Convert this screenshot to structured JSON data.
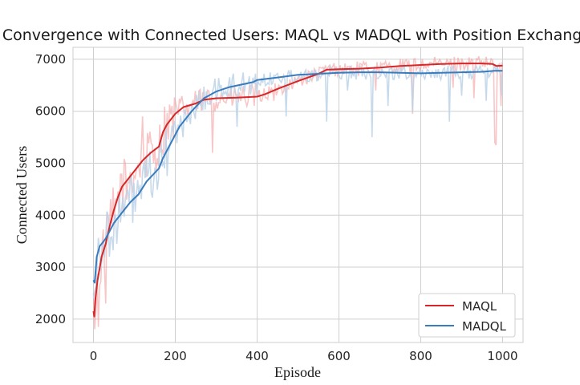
{
  "chart_data": {
    "type": "line",
    "title": "Convergence with Connected Users: MAQL vs MADQL with Position Exchange",
    "xlabel": "Episode",
    "ylabel": "Connected Users",
    "xlim": [
      -50,
      1050
    ],
    "ylim": [
      1550,
      7230
    ],
    "xticks": [
      0,
      200,
      400,
      600,
      800,
      1000
    ],
    "yticks": [
      2000,
      3000,
      4000,
      5000,
      6000,
      7000
    ],
    "grid": true,
    "legend_position": "lower-right",
    "series": [
      {
        "name": "MAQL",
        "color": "#d62728",
        "raw_color": "#f4a0a0",
        "smoothed": [
          [
            0,
            2150
          ],
          [
            2,
            2050
          ],
          [
            5,
            2400
          ],
          [
            10,
            2750
          ],
          [
            20,
            3200
          ],
          [
            30,
            3450
          ],
          [
            40,
            3800
          ],
          [
            50,
            4100
          ],
          [
            60,
            4350
          ],
          [
            70,
            4550
          ],
          [
            80,
            4650
          ],
          [
            100,
            4850
          ],
          [
            120,
            5050
          ],
          [
            140,
            5200
          ],
          [
            160,
            5320
          ],
          [
            170,
            5600
          ],
          [
            180,
            5750
          ],
          [
            200,
            5950
          ],
          [
            220,
            6080
          ],
          [
            250,
            6150
          ],
          [
            270,
            6220
          ],
          [
            300,
            6250
          ],
          [
            350,
            6260
          ],
          [
            400,
            6280
          ],
          [
            420,
            6330
          ],
          [
            450,
            6430
          ],
          [
            500,
            6580
          ],
          [
            550,
            6720
          ],
          [
            570,
            6800
          ],
          [
            600,
            6810
          ],
          [
            650,
            6820
          ],
          [
            700,
            6840
          ],
          [
            750,
            6870
          ],
          [
            800,
            6890
          ],
          [
            850,
            6910
          ],
          [
            900,
            6920
          ],
          [
            950,
            6920
          ],
          [
            975,
            6910
          ],
          [
            985,
            6870
          ],
          [
            1000,
            6880
          ]
        ],
        "spikes": [
          [
            12,
            1850
          ],
          [
            30,
            2300
          ],
          [
            50,
            3900
          ],
          [
            80,
            4300
          ],
          [
            120,
            5900
          ],
          [
            230,
            5900
          ],
          [
            290,
            5200
          ],
          [
            440,
            6200
          ],
          [
            690,
            6400
          ],
          [
            780,
            5950
          ],
          [
            880,
            6450
          ],
          [
            930,
            6250
          ],
          [
            980,
            5400
          ],
          [
            985,
            5350
          ],
          [
            995,
            6100
          ]
        ]
      },
      {
        "name": "MADQL",
        "color": "#3a7bbd",
        "raw_color": "#bdd3e8",
        "smoothed": [
          [
            0,
            2750
          ],
          [
            3,
            2700
          ],
          [
            8,
            3200
          ],
          [
            15,
            3400
          ],
          [
            25,
            3500
          ],
          [
            30,
            3550
          ],
          [
            40,
            3700
          ],
          [
            50,
            3850
          ],
          [
            70,
            4050
          ],
          [
            90,
            4250
          ],
          [
            110,
            4400
          ],
          [
            130,
            4650
          ],
          [
            160,
            4900
          ],
          [
            170,
            5100
          ],
          [
            190,
            5400
          ],
          [
            210,
            5700
          ],
          [
            240,
            6000
          ],
          [
            270,
            6250
          ],
          [
            300,
            6380
          ],
          [
            330,
            6460
          ],
          [
            360,
            6510
          ],
          [
            390,
            6560
          ],
          [
            400,
            6600
          ],
          [
            450,
            6650
          ],
          [
            500,
            6700
          ],
          [
            550,
            6720
          ],
          [
            600,
            6740
          ],
          [
            650,
            6750
          ],
          [
            700,
            6750
          ],
          [
            750,
            6740
          ],
          [
            800,
            6730
          ],
          [
            850,
            6740
          ],
          [
            900,
            6750
          ],
          [
            950,
            6760
          ],
          [
            980,
            6780
          ],
          [
            1000,
            6780
          ]
        ],
        "spikes": [
          [
            40,
            3200
          ],
          [
            90,
            4700
          ],
          [
            150,
            4900
          ],
          [
            220,
            5500
          ],
          [
            350,
            5700
          ],
          [
            400,
            6300
          ],
          [
            470,
            5900
          ],
          [
            570,
            5800
          ],
          [
            620,
            6400
          ],
          [
            680,
            5500
          ],
          [
            720,
            6100
          ],
          [
            780,
            6000
          ],
          [
            870,
            5800
          ],
          [
            900,
            6300
          ],
          [
            960,
            6200
          ],
          [
            1000,
            6300
          ]
        ]
      }
    ]
  }
}
